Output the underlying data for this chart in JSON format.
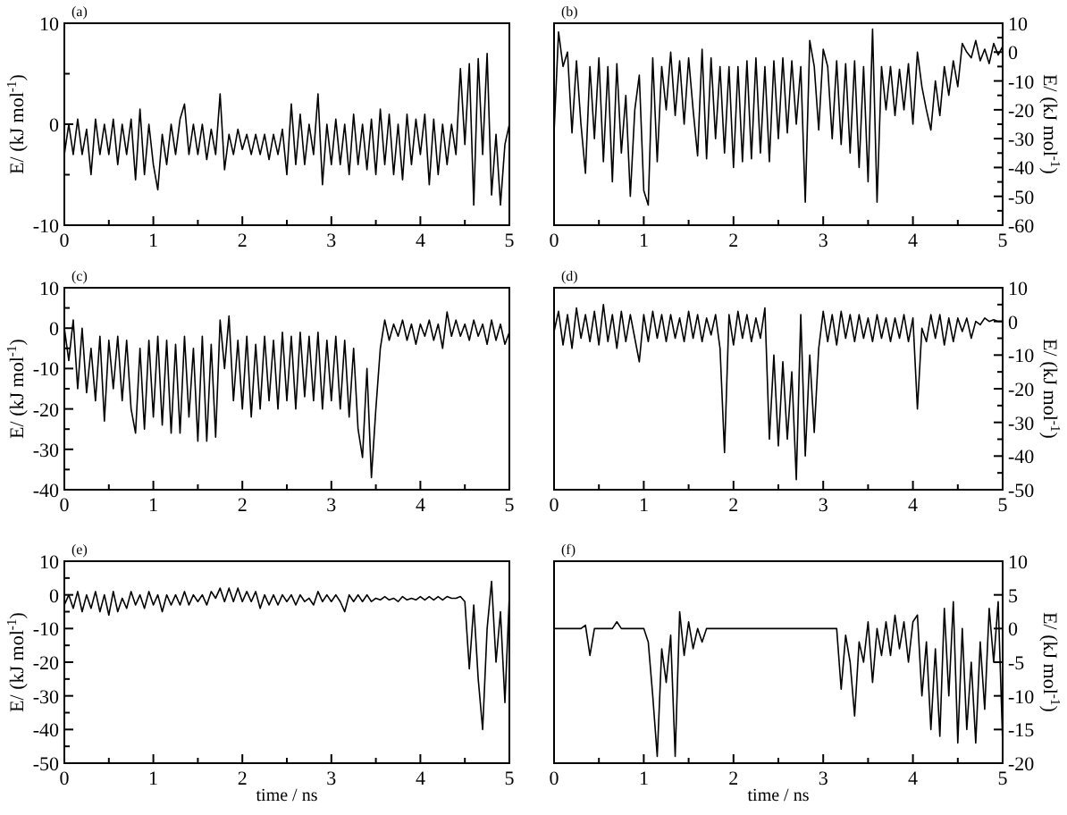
{
  "chart_data": [
    {
      "type": "line",
      "title": "(a)",
      "ylabel": "E/ (kJ mol$^{-1}$)",
      "xlim": [
        0,
        5
      ],
      "ylim": [
        -10,
        10
      ],
      "xticks": [
        0,
        {
          "value": 0.5,
          "label": null
        },
        1,
        {
          "value": 1.5,
          "label": null
        },
        2,
        {
          "value": 2.5,
          "label": null
        },
        3,
        {
          "value": 3.5,
          "label": null
        },
        4,
        {
          "value": 4.5,
          "label": null
        },
        5
      ],
      "yticks": [
        -10,
        {
          "value": -5,
          "label": null
        },
        0,
        {
          "value": 5,
          "label": null
        },
        10
      ],
      "x": [
        0,
        0.05,
        0.1,
        0.15,
        0.2,
        0.25,
        0.3,
        0.35,
        0.4,
        0.45,
        0.5,
        0.55,
        0.6,
        0.65,
        0.7,
        0.75,
        0.8,
        0.85,
        0.9,
        0.95,
        1,
        1.05,
        1.1,
        1.15,
        1.2,
        1.25,
        1.3,
        1.35,
        1.4,
        1.45,
        1.5,
        1.55,
        1.6,
        1.65,
        1.7,
        1.75,
        1.8,
        1.85,
        1.9,
        1.95,
        2,
        2.05,
        2.1,
        2.15,
        2.2,
        2.25,
        2.3,
        2.35,
        2.4,
        2.45,
        2.5,
        2.55,
        2.6,
        2.65,
        2.7,
        2.75,
        2.8,
        2.85,
        2.9,
        2.95,
        3,
        3.05,
        3.1,
        3.15,
        3.2,
        3.25,
        3.3,
        3.35,
        3.4,
        3.45,
        3.5,
        3.55,
        3.6,
        3.65,
        3.7,
        3.75,
        3.8,
        3.85,
        3.9,
        3.95,
        4,
        4.05,
        4.1,
        4.15,
        4.2,
        4.25,
        4.3,
        4.35,
        4.4,
        4.45,
        4.5,
        4.55,
        4.6,
        4.65,
        4.7,
        4.75,
        4.8,
        4.85,
        4.9,
        4.95,
        5
      ],
      "series": [
        {
          "color": "#000000",
          "values": [
            -3,
            0,
            -3,
            0.5,
            -3,
            -0.5,
            -5,
            0.5,
            -3,
            0,
            -3,
            0.5,
            -4,
            0,
            -3,
            0.5,
            -5.5,
            1.5,
            -5,
            0,
            -4,
            -6.5,
            -1,
            -4,
            0,
            -3,
            0.5,
            2,
            -3,
            0,
            -3,
            0,
            -3.5,
            -0.5,
            -3,
            3,
            -4.5,
            -1,
            -3,
            -0.5,
            -2.5,
            -1,
            -3,
            -1,
            -3,
            -1,
            -3.5,
            -1,
            -3,
            -0.5,
            -5,
            2,
            -4,
            1,
            -4,
            0,
            -3,
            3,
            -6,
            0,
            -4,
            0.5,
            -4,
            0,
            -5,
            1,
            -4,
            0,
            -4.5,
            0.5,
            -5,
            1.5,
            -4,
            1,
            -5,
            0,
            -5.5,
            1,
            -4,
            0.5,
            -3,
            1,
            -6,
            0.5,
            -5,
            0,
            -4,
            0,
            -3,
            5.5,
            -2,
            6,
            -8,
            6.5,
            -3,
            7,
            -7,
            -1,
            -8,
            -2,
            0
          ]
        }
      ]
    },
    {
      "type": "line",
      "title": "(b)",
      "y2label": "E/ (kJ mol$^{-1}$)",
      "xlim": [
        0,
        5
      ],
      "y2lim": [
        -60,
        10
      ],
      "xticks": [
        0,
        {
          "value": 0.5,
          "label": null
        },
        1,
        {
          "value": 1.5,
          "label": null
        },
        2,
        {
          "value": 2.5,
          "label": null
        },
        3,
        {
          "value": 3.5,
          "label": null
        },
        4,
        {
          "value": 4.5,
          "label": null
        },
        5
      ],
      "y2ticks": [
        -60,
        {
          "value": -55,
          "label": null
        },
        -50,
        {
          "value": -45,
          "label": null
        },
        -40,
        {
          "value": -35,
          "label": null
        },
        -30,
        {
          "value": -25,
          "label": null
        },
        -20,
        {
          "value": -15,
          "label": null
        },
        -10,
        {
          "value": -5,
          "label": null
        },
        0,
        {
          "value": 5,
          "label": null
        },
        10
      ],
      "x": [
        0,
        0.05,
        0.1,
        0.15,
        0.2,
        0.25,
        0.3,
        0.35,
        0.4,
        0.45,
        0.5,
        0.55,
        0.6,
        0.65,
        0.7,
        0.75,
        0.8,
        0.85,
        0.9,
        0.95,
        1,
        1.05,
        1.1,
        1.15,
        1.2,
        1.25,
        1.3,
        1.35,
        1.4,
        1.45,
        1.5,
        1.55,
        1.6,
        1.65,
        1.7,
        1.75,
        1.8,
        1.85,
        1.9,
        1.95,
        2,
        2.05,
        2.1,
        2.15,
        2.2,
        2.25,
        2.3,
        2.35,
        2.4,
        2.45,
        2.5,
        2.55,
        2.6,
        2.65,
        2.7,
        2.75,
        2.8,
        2.85,
        2.9,
        2.95,
        3,
        3.05,
        3.1,
        3.15,
        3.2,
        3.25,
        3.3,
        3.35,
        3.4,
        3.45,
        3.5,
        3.55,
        3.6,
        3.65,
        3.7,
        3.75,
        3.8,
        3.85,
        3.9,
        3.95,
        4,
        4.05,
        4.1,
        4.15,
        4.2,
        4.25,
        4.3,
        4.35,
        4.4,
        4.45,
        4.5,
        4.55,
        4.6,
        4.65,
        4.7,
        4.75,
        4.8,
        4.85,
        4.9,
        4.95,
        5
      ],
      "series": [
        {
          "color": "#000000",
          "axis": "y2",
          "values": [
            -28,
            7,
            -5,
            0,
            -28,
            -3,
            -25,
            -42,
            -5,
            -30,
            -2,
            -38,
            -5,
            -45,
            -4,
            -35,
            -15,
            -50,
            -20,
            -8,
            -48,
            -53,
            -2,
            -38,
            -5,
            -20,
            0,
            -22,
            -3,
            -25,
            -2,
            -20,
            -36,
            1,
            -37,
            -2,
            -30,
            -5,
            -35,
            -5,
            -40,
            -5,
            -38,
            -3,
            -37,
            -2,
            -35,
            -5,
            -38,
            -3,
            -30,
            -2,
            -28,
            -3,
            -25,
            -5,
            -52,
            4,
            -5,
            -27,
            1,
            -5,
            -30,
            -3,
            -32,
            -4,
            -35,
            -3,
            -40,
            -5,
            -45,
            8,
            -52,
            -5,
            -20,
            -5,
            -22,
            -6,
            -20,
            -4,
            -25,
            0,
            -12,
            -20,
            -27,
            -10,
            -22,
            -5,
            -15,
            -3,
            -12,
            3,
            0,
            -2,
            4,
            -3,
            1,
            -4,
            3,
            -1,
            2
          ]
        }
      ]
    },
    {
      "type": "line",
      "title": "(c)",
      "ylabel": "E/ (kJ mol$^{-1}$)",
      "xlim": [
        0,
        5
      ],
      "ylim": [
        -40,
        10
      ],
      "xticks": [
        0,
        {
          "value": 0.5,
          "label": null
        },
        1,
        {
          "value": 1.5,
          "label": null
        },
        2,
        {
          "value": 2.5,
          "label": null
        },
        3,
        {
          "value": 3.5,
          "label": null
        },
        4,
        {
          "value": 4.5,
          "label": null
        },
        5
      ],
      "yticks": [
        -40,
        {
          "value": -35,
          "label": null
        },
        -30,
        {
          "value": -25,
          "label": null
        },
        -20,
        {
          "value": -15,
          "label": null
        },
        -10,
        {
          "value": -5,
          "label": null
        },
        0,
        {
          "value": 5,
          "label": null
        },
        10
      ],
      "x": [
        0,
        0.05,
        0.1,
        0.15,
        0.2,
        0.25,
        0.3,
        0.35,
        0.4,
        0.45,
        0.5,
        0.55,
        0.6,
        0.65,
        0.7,
        0.75,
        0.8,
        0.85,
        0.9,
        0.95,
        1,
        1.05,
        1.1,
        1.15,
        1.2,
        1.25,
        1.3,
        1.35,
        1.4,
        1.45,
        1.5,
        1.55,
        1.6,
        1.65,
        1.7,
        1.75,
        1.8,
        1.85,
        1.9,
        1.95,
        2,
        2.05,
        2.1,
        2.15,
        2.2,
        2.25,
        2.3,
        2.35,
        2.4,
        2.45,
        2.5,
        2.55,
        2.6,
        2.65,
        2.7,
        2.75,
        2.8,
        2.85,
        2.9,
        2.95,
        3,
        3.05,
        3.1,
        3.15,
        3.2,
        3.25,
        3.3,
        3.35,
        3.4,
        3.45,
        3.5,
        3.55,
        3.6,
        3.65,
        3.7,
        3.75,
        3.8,
        3.85,
        3.9,
        3.95,
        4,
        4.05,
        4.1,
        4.15,
        4.2,
        4.25,
        4.3,
        4.35,
        4.4,
        4.45,
        4.5,
        4.55,
        4.6,
        4.65,
        4.7,
        4.75,
        4.8,
        4.85,
        4.9,
        4.95,
        5
      ],
      "series": [
        {
          "color": "#000000",
          "values": [
            0,
            -8,
            2,
            -15,
            0,
            -16,
            -5,
            -18,
            -2,
            -23,
            -3,
            -15,
            -2,
            -18,
            -3,
            -20,
            -26,
            -5,
            -25,
            -3,
            -22,
            -2,
            -24,
            -3,
            -26,
            -4,
            -26,
            -2,
            -22,
            -5,
            -28,
            -2,
            -28,
            -4,
            -27,
            2,
            -10,
            3,
            -18,
            -3,
            -20,
            -2,
            -22,
            -4,
            -20,
            -2,
            -18,
            -3,
            -20,
            -1,
            -18,
            -2,
            -20,
            -1,
            -17,
            -2,
            -18,
            -1,
            -20,
            -3,
            -18,
            -2,
            -20,
            -3,
            -22,
            -5,
            -25,
            -32,
            -10,
            -37,
            -20,
            -5,
            2,
            -3,
            1,
            -2,
            2,
            -3,
            1,
            -4,
            1,
            -2,
            2,
            -3,
            1,
            -5,
            4,
            -2,
            2,
            -2,
            1,
            -3,
            2,
            -2,
            1,
            -4,
            2,
            -3,
            1,
            -4,
            -1
          ]
        }
      ]
    },
    {
      "type": "line",
      "title": "(d)",
      "y2label": "E/ (kJ mol$^{-1}$)",
      "xlim": [
        0,
        5
      ],
      "y2lim": [
        -50,
        10
      ],
      "xticks": [
        0,
        {
          "value": 0.5,
          "label": null
        },
        1,
        {
          "value": 1.5,
          "label": null
        },
        2,
        {
          "value": 2.5,
          "label": null
        },
        3,
        {
          "value": 3.5,
          "label": null
        },
        4,
        {
          "value": 4.5,
          "label": null
        },
        5
      ],
      "y2ticks": [
        -50,
        {
          "value": -45,
          "label": null
        },
        -40,
        {
          "value": -35,
          "label": null
        },
        -30,
        {
          "value": -25,
          "label": null
        },
        -20,
        {
          "value": -15,
          "label": null
        },
        -10,
        {
          "value": -5,
          "label": null
        },
        0,
        {
          "value": 5,
          "label": null
        },
        10
      ],
      "x": [
        0,
        0.05,
        0.1,
        0.15,
        0.2,
        0.25,
        0.3,
        0.35,
        0.4,
        0.45,
        0.5,
        0.55,
        0.6,
        0.65,
        0.7,
        0.75,
        0.8,
        0.85,
        0.9,
        0.95,
        1,
        1.05,
        1.1,
        1.15,
        1.2,
        1.25,
        1.3,
        1.35,
        1.4,
        1.45,
        1.5,
        1.55,
        1.6,
        1.65,
        1.7,
        1.75,
        1.8,
        1.85,
        1.9,
        1.95,
        2,
        2.05,
        2.1,
        2.15,
        2.2,
        2.25,
        2.3,
        2.35,
        2.4,
        2.45,
        2.5,
        2.55,
        2.6,
        2.65,
        2.7,
        2.75,
        2.8,
        2.85,
        2.9,
        2.95,
        3,
        3.05,
        3.1,
        3.15,
        3.2,
        3.25,
        3.3,
        3.35,
        3.4,
        3.45,
        3.5,
        3.55,
        3.6,
        3.65,
        3.7,
        3.75,
        3.8,
        3.85,
        3.9,
        3.95,
        4,
        4.05,
        4.1,
        4.15,
        4.2,
        4.25,
        4.3,
        4.35,
        4.4,
        4.45,
        4.5,
        4.55,
        4.6,
        4.65,
        4.7,
        4.75,
        4.8,
        4.85,
        4.9,
        4.95,
        5
      ],
      "series": [
        {
          "color": "#000000",
          "axis": "y2",
          "values": [
            -3,
            3,
            -7,
            2,
            -8,
            4,
            -5,
            2,
            -6,
            3,
            -7,
            5,
            -6,
            2,
            -8,
            3,
            -6,
            2,
            -5,
            -12,
            2,
            -6,
            3,
            -5,
            2,
            -6,
            2,
            -5,
            1,
            -6,
            3,
            -5,
            2,
            -6,
            1,
            -4,
            2,
            -8,
            -39,
            2,
            -7,
            3,
            -5,
            2,
            -6,
            1,
            -5,
            4,
            -35,
            -10,
            -37,
            -12,
            -35,
            -15,
            -47,
            2,
            -40,
            -10,
            -33,
            -8,
            3,
            -6,
            2,
            -7,
            3,
            -5,
            2,
            -6,
            2,
            -5,
            1,
            -6,
            2,
            -5,
            1,
            -6,
            1,
            -5,
            2,
            -6,
            1,
            -26,
            -2,
            -6,
            2,
            -5,
            2,
            -7,
            1,
            -6,
            1,
            -3,
            1,
            -5,
            0,
            -1,
            1,
            0,
            0.5,
            0,
            0
          ]
        }
      ]
    },
    {
      "type": "line",
      "title": "(e)",
      "xlabel": "time / ns",
      "ylabel": "E/ (kJ mol$^{-1}$)",
      "xlim": [
        0,
        5
      ],
      "ylim": [
        -50,
        10
      ],
      "xticks": [
        0,
        {
          "value": 0.5,
          "label": null
        },
        1,
        {
          "value": 1.5,
          "label": null
        },
        2,
        {
          "value": 2.5,
          "label": null
        },
        3,
        {
          "value": 3.5,
          "label": null
        },
        4,
        {
          "value": 4.5,
          "label": null
        },
        5
      ],
      "yticks": [
        -50,
        {
          "value": -45,
          "label": null
        },
        -40,
        {
          "value": -35,
          "label": null
        },
        -30,
        {
          "value": -25,
          "label": null
        },
        -20,
        {
          "value": -15,
          "label": null
        },
        -10,
        {
          "value": -5,
          "label": null
        },
        0,
        {
          "value": 5,
          "label": null
        },
        10
      ],
      "x": [
        0,
        0.05,
        0.1,
        0.15,
        0.2,
        0.25,
        0.3,
        0.35,
        0.4,
        0.45,
        0.5,
        0.55,
        0.6,
        0.65,
        0.7,
        0.75,
        0.8,
        0.85,
        0.9,
        0.95,
        1,
        1.05,
        1.1,
        1.15,
        1.2,
        1.25,
        1.3,
        1.35,
        1.4,
        1.45,
        1.5,
        1.55,
        1.6,
        1.65,
        1.7,
        1.75,
        1.8,
        1.85,
        1.9,
        1.95,
        2,
        2.05,
        2.1,
        2.15,
        2.2,
        2.25,
        2.3,
        2.35,
        2.4,
        2.45,
        2.5,
        2.55,
        2.6,
        2.65,
        2.7,
        2.75,
        2.8,
        2.85,
        2.9,
        2.95,
        3,
        3.05,
        3.1,
        3.15,
        3.2,
        3.25,
        3.3,
        3.35,
        3.4,
        3.45,
        3.5,
        3.55,
        3.6,
        3.65,
        3.7,
        3.75,
        3.8,
        3.85,
        3.9,
        3.95,
        4,
        4.05,
        4.1,
        4.15,
        4.2,
        4.25,
        4.3,
        4.35,
        4.4,
        4.45,
        4.5,
        4.55,
        4.6,
        4.65,
        4.7,
        4.75,
        4.8,
        4.85,
        4.9,
        4.95,
        5
      ],
      "series": [
        {
          "color": "#000000",
          "values": [
            -3,
            0,
            -4,
            1,
            -5,
            0,
            -4,
            1,
            -5,
            0,
            -6,
            1,
            -5,
            -1,
            -4,
            1,
            -3,
            0,
            -4,
            1,
            -3,
            0,
            -5,
            0,
            -3,
            0,
            -3,
            1,
            -3,
            0,
            -2,
            0,
            -3,
            1,
            -1,
            2,
            -2,
            2,
            -2,
            2,
            -2,
            1,
            -2,
            1,
            -4,
            0,
            -3,
            0,
            -3,
            0,
            -2,
            0,
            -3,
            0,
            -2,
            -1,
            -3,
            1,
            -2,
            0,
            -2,
            0,
            -2,
            -5,
            0,
            -2,
            0,
            -2,
            0,
            -2,
            -1,
            -1.5,
            -0.5,
            -1.5,
            -1,
            -2,
            -0.5,
            -1.5,
            -1,
            -1.5,
            -0.5,
            -1.5,
            -0.5,
            -1.5,
            -0.5,
            -1.5,
            -0.5,
            -1,
            -1,
            -0.5,
            -2,
            -22,
            -3,
            -25,
            -40,
            -10,
            4,
            -20,
            -5,
            -32,
            0
          ]
        }
      ]
    },
    {
      "type": "line",
      "title": "(f)",
      "xlabel": "time / ns",
      "y2label": "E/ (kJ mol$^{-1}$)",
      "xlim": [
        0,
        5
      ],
      "y2lim": [
        -20,
        10
      ],
      "xticks": [
        0,
        {
          "value": 0.5,
          "label": null
        },
        1,
        {
          "value": 1.5,
          "label": null
        },
        2,
        {
          "value": 2.5,
          "label": null
        },
        3,
        {
          "value": 3.5,
          "label": null
        },
        4,
        {
          "value": 4.5,
          "label": null
        },
        5
      ],
      "y2ticks": [
        -20,
        -15,
        -10,
        -5,
        0,
        5,
        10
      ],
      "x": [
        0,
        0.3,
        0.35,
        0.4,
        0.45,
        0.65,
        0.7,
        0.75,
        1,
        1.05,
        1.1,
        1.15,
        1.2,
        1.25,
        1.3,
        1.35,
        1.4,
        1.45,
        1.5,
        1.55,
        1.6,
        1.65,
        1.7,
        1.75,
        3.15,
        3.2,
        3.25,
        3.3,
        3.35,
        3.4,
        3.45,
        3.5,
        3.55,
        3.6,
        3.65,
        3.7,
        3.75,
        3.8,
        3.85,
        3.9,
        3.95,
        4,
        4.05,
        4.1,
        4.15,
        4.2,
        4.25,
        4.3,
        4.35,
        4.4,
        4.45,
        4.5,
        4.55,
        4.6,
        4.65,
        4.7,
        4.75,
        4.8,
        4.85,
        4.9,
        4.95,
        5
      ],
      "series": [
        {
          "color": "#000000",
          "axis": "y2",
          "values": [
            0,
            0,
            0.5,
            -4,
            0,
            0,
            1,
            0,
            0,
            -2,
            -10,
            -19,
            -3,
            -8,
            -1,
            -19,
            2.5,
            -4,
            1,
            -3,
            0,
            -2,
            0,
            0,
            0,
            -9,
            -1,
            -5,
            -13,
            -2,
            -5,
            1,
            -8,
            0,
            -4,
            1,
            -4,
            2,
            -3,
            1,
            -5,
            1,
            2,
            -10,
            -2,
            -15,
            -3,
            -16,
            3,
            -10,
            4,
            -17,
            0,
            -15,
            -5,
            -17,
            -2,
            -12,
            3,
            -5,
            4,
            -17
          ]
        }
      ]
    }
  ]
}
